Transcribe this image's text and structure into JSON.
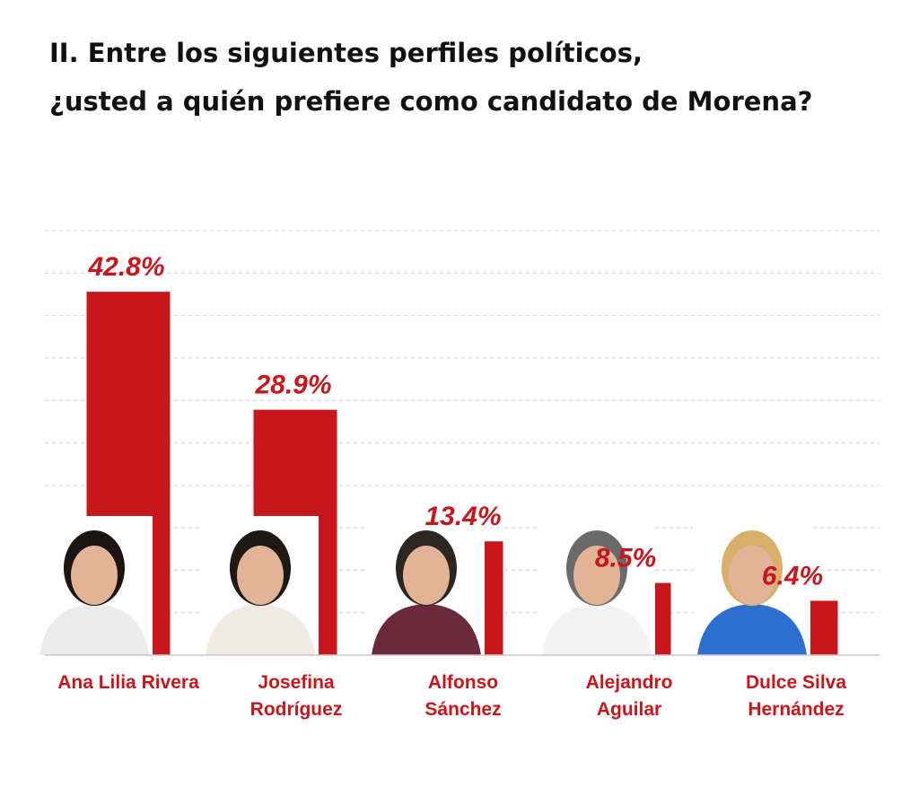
{
  "title_lines": [
    "II. Entre los siguientes perfiles políticos,",
    "¿usted a quién prefiere como candidato de Morena?"
  ],
  "colors": {
    "bar": "#c8161d",
    "label": "#c8161d",
    "grid": "#d0d0d0"
  },
  "chart_data": {
    "type": "bar",
    "categories": [
      [
        "Ana Lilia Rivera"
      ],
      [
        "Josefina",
        "Rodríguez"
      ],
      [
        "Alfonso",
        "Sánchez"
      ],
      [
        "Alejandro",
        "Aguilar"
      ],
      [
        "Dulce Silva",
        "Hernández"
      ]
    ],
    "values": [
      42.8,
      28.9,
      13.4,
      8.5,
      6.4
    ],
    "value_labels": [
      "42.8%",
      "28.9%",
      "13.4%",
      "8.5%",
      "6.4%"
    ],
    "ylim": [
      0,
      50
    ],
    "grid": true,
    "legend": "none"
  }
}
